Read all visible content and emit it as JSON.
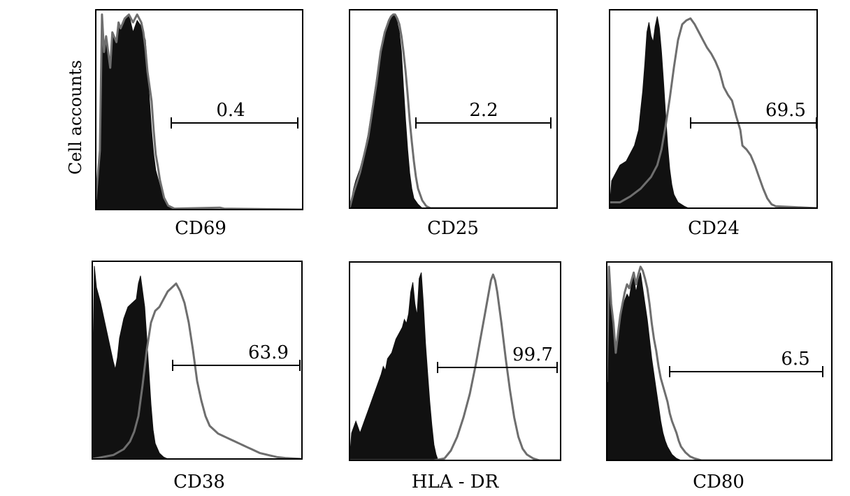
{
  "ylabel": "Cell accounts",
  "colors": {
    "isotype_fill": "#111111",
    "marker_line": "#6e6e6e",
    "frame": "#000000"
  },
  "chart_data": [
    {
      "type": "area",
      "xlabel": "CD69",
      "gate_percent": "0.4",
      "isotype": [
        [
          0,
          0.05
        ],
        [
          2,
          0.3
        ],
        [
          3,
          0.99
        ],
        [
          4,
          0.8
        ],
        [
          5,
          0.88
        ],
        [
          7,
          0.72
        ],
        [
          8,
          0.9
        ],
        [
          10,
          0.85
        ],
        [
          11,
          0.95
        ],
        [
          12,
          0.92
        ],
        [
          14,
          0.97
        ],
        [
          16,
          0.99
        ],
        [
          18,
          0.9
        ],
        [
          20,
          0.96
        ],
        [
          22,
          0.93
        ],
        [
          24,
          0.86
        ],
        [
          25,
          0.72
        ],
        [
          26,
          0.55
        ],
        [
          27,
          0.4
        ],
        [
          28,
          0.28
        ],
        [
          29,
          0.2
        ],
        [
          31,
          0.12
        ],
        [
          33,
          0.05
        ],
        [
          35,
          0.02
        ],
        [
          38,
          0.005
        ],
        [
          40,
          0
        ]
      ],
      "marker": [
        [
          0,
          0.05
        ],
        [
          2,
          0.3
        ],
        [
          3,
          0.99
        ],
        [
          4,
          0.8
        ],
        [
          5,
          0.88
        ],
        [
          7,
          0.72
        ],
        [
          8,
          0.9
        ],
        [
          10,
          0.85
        ],
        [
          11,
          0.95
        ],
        [
          12,
          0.92
        ],
        [
          14,
          0.97
        ],
        [
          16,
          0.99
        ],
        [
          18,
          0.95
        ],
        [
          20,
          0.99
        ],
        [
          22,
          0.95
        ],
        [
          23,
          0.9
        ],
        [
          24,
          0.82
        ],
        [
          25,
          0.7
        ],
        [
          27,
          0.55
        ],
        [
          28,
          0.4
        ],
        [
          29,
          0.28
        ],
        [
          30,
          0.22
        ],
        [
          31,
          0.15
        ],
        [
          33,
          0.06
        ],
        [
          35,
          0.02
        ],
        [
          38,
          0.005
        ],
        [
          60,
          0.01
        ],
        [
          62,
          0.005
        ],
        [
          100,
          0
        ]
      ]
    },
    {
      "type": "area",
      "xlabel": "CD25",
      "gate_percent": "2.2",
      "isotype": [
        [
          0,
          0
        ],
        [
          1,
          0.05
        ],
        [
          2,
          0.1
        ],
        [
          3,
          0.14
        ],
        [
          5,
          0.2
        ],
        [
          7,
          0.28
        ],
        [
          9,
          0.38
        ],
        [
          11,
          0.52
        ],
        [
          13,
          0.66
        ],
        [
          15,
          0.8
        ],
        [
          17,
          0.9
        ],
        [
          19,
          0.95
        ],
        [
          20,
          0.97
        ],
        [
          21,
          0.99
        ],
        [
          22,
          0.98
        ],
        [
          23,
          0.95
        ],
        [
          24,
          0.9
        ],
        [
          25,
          0.8
        ],
        [
          26,
          0.62
        ],
        [
          27,
          0.45
        ],
        [
          28,
          0.3
        ],
        [
          29,
          0.18
        ],
        [
          30,
          0.1
        ],
        [
          31,
          0.05
        ],
        [
          33,
          0.02
        ],
        [
          35,
          0
        ]
      ],
      "marker": [
        [
          0,
          0
        ],
        [
          2,
          0.08
        ],
        [
          5,
          0.18
        ],
        [
          9,
          0.36
        ],
        [
          13,
          0.64
        ],
        [
          15,
          0.8
        ],
        [
          17,
          0.9
        ],
        [
          18,
          0.93
        ],
        [
          19,
          0.96
        ],
        [
          20,
          0.98
        ],
        [
          21,
          0.99
        ],
        [
          22,
          0.99
        ],
        [
          23,
          0.97
        ],
        [
          24,
          0.94
        ],
        [
          25,
          0.88
        ],
        [
          26,
          0.8
        ],
        [
          27,
          0.7
        ],
        [
          28,
          0.58
        ],
        [
          29,
          0.45
        ],
        [
          30,
          0.34
        ],
        [
          31,
          0.24
        ],
        [
          32,
          0.16
        ],
        [
          33,
          0.1
        ],
        [
          35,
          0.04
        ],
        [
          37,
          0.01
        ],
        [
          39,
          0
        ],
        [
          100,
          0
        ]
      ]
    },
    {
      "type": "area",
      "xlabel": "CD24",
      "gate_percent": "69.5",
      "isotype": [
        [
          0,
          0
        ],
        [
          1,
          0.14
        ],
        [
          3,
          0.18
        ],
        [
          5,
          0.22
        ],
        [
          8,
          0.24
        ],
        [
          10,
          0.28
        ],
        [
          12,
          0.32
        ],
        [
          14,
          0.4
        ],
        [
          15,
          0.5
        ],
        [
          16,
          0.6
        ],
        [
          17,
          0.74
        ],
        [
          18,
          0.9
        ],
        [
          19,
          0.95
        ],
        [
          20,
          0.88
        ],
        [
          21,
          0.85
        ],
        [
          22,
          0.93
        ],
        [
          23,
          0.98
        ],
        [
          24,
          0.92
        ],
        [
          25,
          0.8
        ],
        [
          26,
          0.65
        ],
        [
          27,
          0.48
        ],
        [
          28,
          0.32
        ],
        [
          29,
          0.2
        ],
        [
          30,
          0.12
        ],
        [
          31,
          0.07
        ],
        [
          33,
          0.03
        ],
        [
          36,
          0.01
        ],
        [
          38,
          0
        ]
      ],
      "marker": [
        [
          0,
          0.03
        ],
        [
          5,
          0.03
        ],
        [
          10,
          0.06
        ],
        [
          15,
          0.1
        ],
        [
          20,
          0.16
        ],
        [
          23,
          0.22
        ],
        [
          25,
          0.3
        ],
        [
          27,
          0.42
        ],
        [
          29,
          0.56
        ],
        [
          31,
          0.72
        ],
        [
          33,
          0.86
        ],
        [
          35,
          0.94
        ],
        [
          37,
          0.96
        ],
        [
          39,
          0.97
        ],
        [
          41,
          0.94
        ],
        [
          43,
          0.9
        ],
        [
          45,
          0.86
        ],
        [
          47,
          0.82
        ],
        [
          49,
          0.79
        ],
        [
          51,
          0.75
        ],
        [
          53,
          0.7
        ],
        [
          55,
          0.62
        ],
        [
          57,
          0.58
        ],
        [
          59,
          0.55
        ],
        [
          61,
          0.47
        ],
        [
          63,
          0.4
        ],
        [
          64,
          0.32
        ],
        [
          66,
          0.3
        ],
        [
          68,
          0.27
        ],
        [
          70,
          0.22
        ],
        [
          72,
          0.16
        ],
        [
          74,
          0.1
        ],
        [
          76,
          0.05
        ],
        [
          78,
          0.02
        ],
        [
          80,
          0.01
        ],
        [
          90,
          0.005
        ],
        [
          100,
          0
        ]
      ]
    },
    {
      "type": "area",
      "xlabel": "CD38",
      "gate_percent": "63.9",
      "isotype": [
        [
          0,
          0.3
        ],
        [
          1,
          0.99
        ],
        [
          2,
          0.88
        ],
        [
          4,
          0.8
        ],
        [
          6,
          0.7
        ],
        [
          8,
          0.6
        ],
        [
          10,
          0.5
        ],
        [
          11,
          0.46
        ],
        [
          12,
          0.52
        ],
        [
          13,
          0.62
        ],
        [
          15,
          0.72
        ],
        [
          17,
          0.78
        ],
        [
          19,
          0.8
        ],
        [
          21,
          0.82
        ],
        [
          22,
          0.9
        ],
        [
          23,
          0.94
        ],
        [
          24,
          0.86
        ],
        [
          25,
          0.78
        ],
        [
          26,
          0.62
        ],
        [
          27,
          0.45
        ],
        [
          28,
          0.28
        ],
        [
          29,
          0.15
        ],
        [
          30,
          0.08
        ],
        [
          32,
          0.03
        ],
        [
          34,
          0.01
        ],
        [
          36,
          0
        ]
      ],
      "marker": [
        [
          0,
          0
        ],
        [
          10,
          0.02
        ],
        [
          15,
          0.05
        ],
        [
          18,
          0.09
        ],
        [
          20,
          0.14
        ],
        [
          22,
          0.22
        ],
        [
          24,
          0.38
        ],
        [
          26,
          0.56
        ],
        [
          28,
          0.7
        ],
        [
          30,
          0.76
        ],
        [
          32,
          0.78
        ],
        [
          34,
          0.82
        ],
        [
          36,
          0.86
        ],
        [
          38,
          0.88
        ],
        [
          40,
          0.9
        ],
        [
          42,
          0.86
        ],
        [
          44,
          0.8
        ],
        [
          46,
          0.7
        ],
        [
          48,
          0.56
        ],
        [
          50,
          0.4
        ],
        [
          52,
          0.3
        ],
        [
          54,
          0.22
        ],
        [
          56,
          0.17
        ],
        [
          58,
          0.15
        ],
        [
          60,
          0.13
        ],
        [
          62,
          0.12
        ],
        [
          64,
          0.11
        ],
        [
          66,
          0.1
        ],
        [
          68,
          0.09
        ],
        [
          70,
          0.08
        ],
        [
          72,
          0.07
        ],
        [
          74,
          0.06
        ],
        [
          76,
          0.05
        ],
        [
          80,
          0.03
        ],
        [
          84,
          0.02
        ],
        [
          88,
          0.01
        ],
        [
          92,
          0.005
        ],
        [
          100,
          0
        ]
      ]
    },
    {
      "type": "area",
      "xlabel": "HLA - DR",
      "gate_percent": "99.7",
      "isotype": [
        [
          0,
          0
        ],
        [
          1,
          0.14
        ],
        [
          3,
          0.2
        ],
        [
          5,
          0.14
        ],
        [
          7,
          0.2
        ],
        [
          9,
          0.26
        ],
        [
          11,
          0.32
        ],
        [
          13,
          0.38
        ],
        [
          15,
          0.44
        ],
        [
          16,
          0.48
        ],
        [
          17,
          0.46
        ],
        [
          18,
          0.52
        ],
        [
          20,
          0.55
        ],
        [
          22,
          0.62
        ],
        [
          24,
          0.66
        ],
        [
          25,
          0.68
        ],
        [
          26,
          0.72
        ],
        [
          27,
          0.7
        ],
        [
          28,
          0.75
        ],
        [
          29,
          0.86
        ],
        [
          30,
          0.91
        ],
        [
          31,
          0.8
        ],
        [
          32,
          0.74
        ],
        [
          33,
          0.93
        ],
        [
          34,
          0.96
        ],
        [
          35,
          0.8
        ],
        [
          36,
          0.6
        ],
        [
          37,
          0.45
        ],
        [
          38,
          0.3
        ],
        [
          39,
          0.18
        ],
        [
          40,
          0.08
        ],
        [
          41,
          0.03
        ],
        [
          42,
          0
        ]
      ],
      "marker": [
        [
          0,
          0
        ],
        [
          40,
          0
        ],
        [
          45,
          0.01
        ],
        [
          48,
          0.05
        ],
        [
          51,
          0.12
        ],
        [
          54,
          0.22
        ],
        [
          57,
          0.34
        ],
        [
          60,
          0.5
        ],
        [
          62,
          0.62
        ],
        [
          64,
          0.74
        ],
        [
          66,
          0.86
        ],
        [
          67,
          0.92
        ],
        [
          68,
          0.95
        ],
        [
          69,
          0.92
        ],
        [
          70,
          0.86
        ],
        [
          72,
          0.7
        ],
        [
          74,
          0.52
        ],
        [
          76,
          0.36
        ],
        [
          78,
          0.22
        ],
        [
          80,
          0.12
        ],
        [
          82,
          0.06
        ],
        [
          84,
          0.03
        ],
        [
          87,
          0.01
        ],
        [
          90,
          0
        ],
        [
          100,
          0
        ]
      ]
    },
    {
      "type": "area",
      "xlabel": "CD80",
      "gate_percent": "6.5",
      "isotype": [
        [
          0,
          0.4
        ],
        [
          1,
          0.99
        ],
        [
          2,
          0.8
        ],
        [
          3,
          0.7
        ],
        [
          4,
          0.55
        ],
        [
          5,
          0.65
        ],
        [
          6,
          0.72
        ],
        [
          7,
          0.78
        ],
        [
          8,
          0.82
        ],
        [
          9,
          0.85
        ],
        [
          10,
          0.83
        ],
        [
          11,
          0.9
        ],
        [
          12,
          0.94
        ],
        [
          13,
          0.86
        ],
        [
          14,
          0.92
        ],
        [
          15,
          0.96
        ],
        [
          16,
          0.88
        ],
        [
          17,
          0.8
        ],
        [
          18,
          0.72
        ],
        [
          19,
          0.62
        ],
        [
          20,
          0.52
        ],
        [
          21,
          0.44
        ],
        [
          22,
          0.36
        ],
        [
          23,
          0.28
        ],
        [
          24,
          0.2
        ],
        [
          25,
          0.14
        ],
        [
          26,
          0.1
        ],
        [
          27,
          0.07
        ],
        [
          29,
          0.03
        ],
        [
          31,
          0.01
        ],
        [
          33,
          0
        ]
      ],
      "marker": [
        [
          0,
          0.4
        ],
        [
          1,
          0.99
        ],
        [
          2,
          0.8
        ],
        [
          3,
          0.7
        ],
        [
          4,
          0.55
        ],
        [
          5,
          0.65
        ],
        [
          6,
          0.74
        ],
        [
          7,
          0.8
        ],
        [
          8,
          0.86
        ],
        [
          9,
          0.9
        ],
        [
          10,
          0.88
        ],
        [
          11,
          0.92
        ],
        [
          12,
          0.96
        ],
        [
          13,
          0.9
        ],
        [
          14,
          0.95
        ],
        [
          15,
          0.99
        ],
        [
          16,
          0.97
        ],
        [
          17,
          0.93
        ],
        [
          18,
          0.88
        ],
        [
          19,
          0.8
        ],
        [
          20,
          0.7
        ],
        [
          21,
          0.62
        ],
        [
          22,
          0.56
        ],
        [
          23,
          0.48
        ],
        [
          24,
          0.42
        ],
        [
          25,
          0.38
        ],
        [
          26,
          0.34
        ],
        [
          27,
          0.3
        ],
        [
          28,
          0.24
        ],
        [
          29,
          0.2
        ],
        [
          30,
          0.17
        ],
        [
          31,
          0.14
        ],
        [
          32,
          0.1
        ],
        [
          33,
          0.07
        ],
        [
          35,
          0.04
        ],
        [
          37,
          0.02
        ],
        [
          39,
          0.01
        ],
        [
          42,
          0
        ],
        [
          100,
          0
        ]
      ]
    }
  ]
}
